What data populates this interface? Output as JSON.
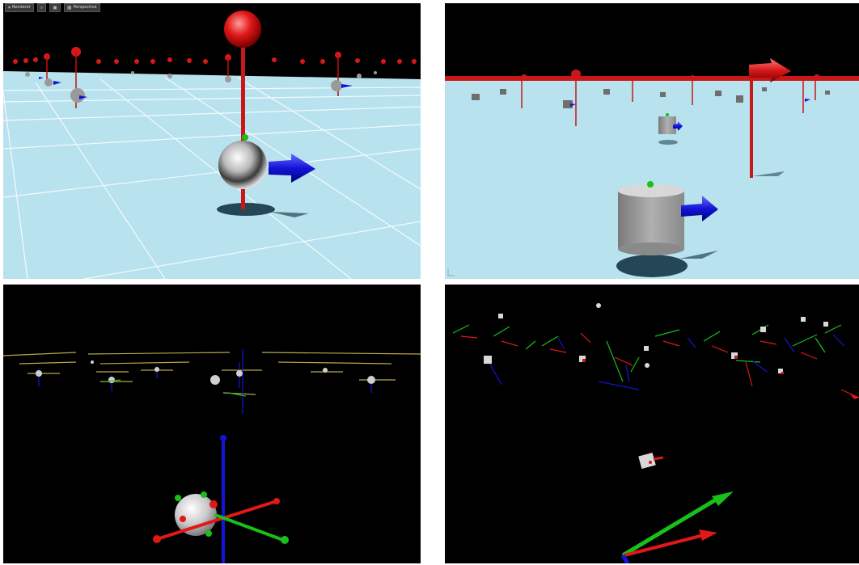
{
  "viewport_toolbar": {
    "render_label": "Renderer",
    "zoom_icon": "magnifier-icon",
    "camera_icon": "camera-icon",
    "view_icon": "perspective-icon",
    "perspective_label": "Perspective"
  },
  "panels": [
    {
      "name": "sphere-scene-perspective",
      "ground_color": "#b8e2ee",
      "sky_color": "#000000"
    },
    {
      "name": "cylinder-scene",
      "ground_color": "#b8e2ee",
      "sky_color": "#000000"
    },
    {
      "name": "sphere-axes-scene",
      "ground_color": "#000000"
    },
    {
      "name": "cube-axes-scene",
      "ground_color": "#000000"
    }
  ],
  "colors": {
    "x_axis": "#e01818",
    "y_axis": "#18c018",
    "z_axis": "#1414d8",
    "body": "#c8c8c8"
  }
}
